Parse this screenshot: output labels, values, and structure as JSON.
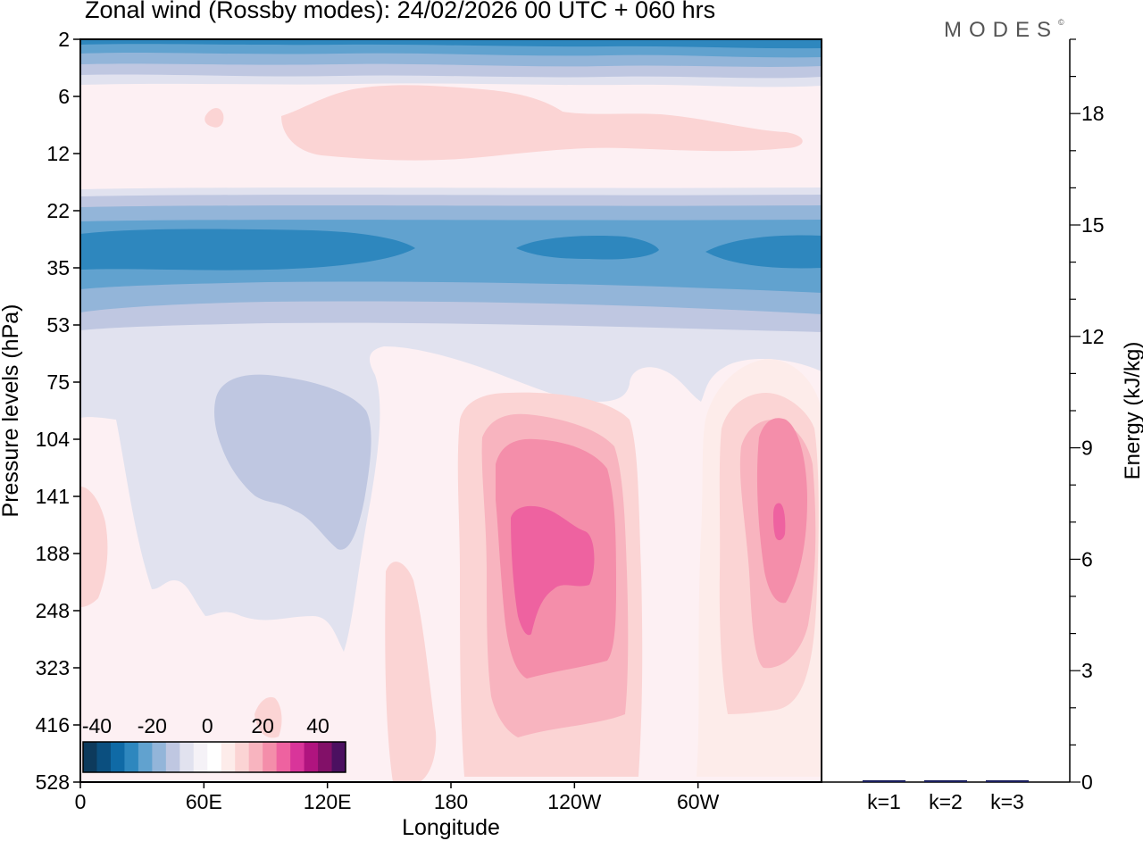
{
  "header": {
    "title": "Zonal wind (Rossby modes):  24/02/2026  00 UTC  + 060 hrs",
    "brand": "MODES",
    "brand_mark": "©"
  },
  "chart_data": [
    {
      "type": "heatmap",
      "title": "Zonal wind (Rossby modes)",
      "xlabel": "Longitude",
      "ylabel": "Pressure levels (hPa)",
      "x_ticks": [
        "0",
        "60E",
        "120E",
        "180",
        "120W",
        "60W"
      ],
      "x_tick_values": [
        0,
        60,
        120,
        180,
        240,
        300
      ],
      "x_range": [
        0,
        360
      ],
      "y_ticks": [
        "2",
        "6",
        "12",
        "22",
        "35",
        "53",
        "75",
        "104",
        "141",
        "188",
        "248",
        "323",
        "416",
        "528"
      ],
      "colorbar": {
        "ticks": [
          "-40",
          "-20",
          "0",
          "20",
          "40"
        ],
        "tick_values": [
          -40,
          -20,
          0,
          20,
          40
        ],
        "levels": [
          -45,
          -40,
          -35,
          -30,
          -25,
          -20,
          -15,
          -10,
          -5,
          0,
          5,
          10,
          15,
          20,
          25,
          30,
          35,
          40,
          45,
          50
        ],
        "colors": [
          "#0d3a5c",
          "#0b4f7f",
          "#0f6aa6",
          "#2e87be",
          "#61a2cf",
          "#93b5d9",
          "#bfc7e1",
          "#e1e2ef",
          "#f5f2f7",
          "#ffffff",
          "#fdecea",
          "#fbd4d4",
          "#f8b4bf",
          "#f48eaa",
          "#ee62a0",
          "#d9359a",
          "#b0147f",
          "#821068",
          "#4b1060"
        ]
      }
    },
    {
      "type": "bar",
      "title": "Energy",
      "categories": [
        "k=1",
        "k=2",
        "k=3"
      ],
      "values": [
        0.05,
        0.05,
        0.04
      ],
      "ylabel": "Energy (kJ/kg)",
      "ylim": [
        0,
        20
      ],
      "y_ticks": [
        "0",
        "3",
        "6",
        "9",
        "12",
        "15",
        "18"
      ],
      "y_tick_values": [
        0,
        3,
        6,
        9,
        12,
        15,
        18
      ]
    }
  ]
}
